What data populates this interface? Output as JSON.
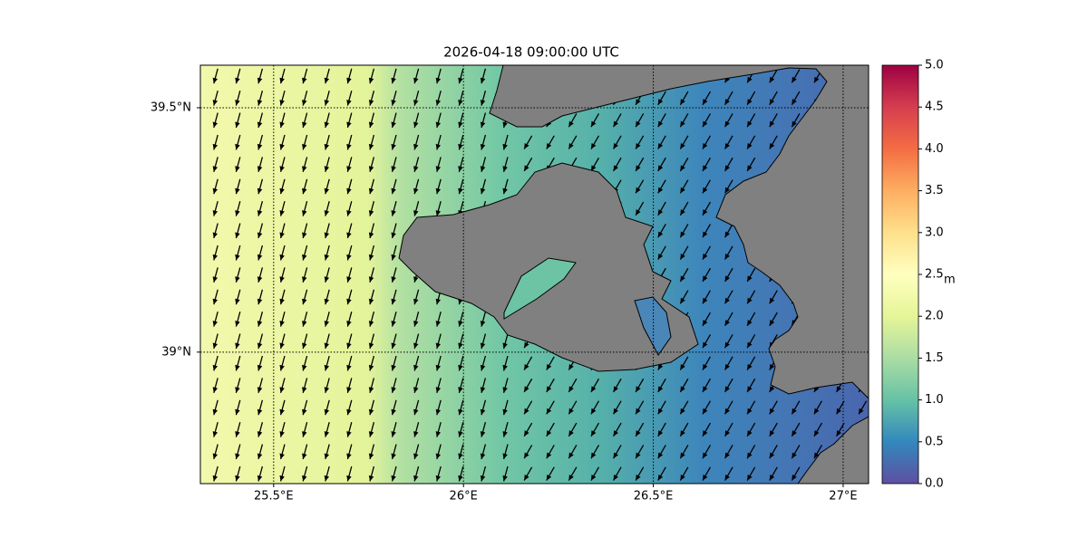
{
  "title": "2026-04-18 09:00:00 UTC",
  "map": {
    "xlim": [
      25.307,
      27.067
    ],
    "ylim": [
      38.731,
      39.587
    ],
    "xticks": [
      {
        "value": 25.5,
        "label": "25.5°E"
      },
      {
        "value": 26,
        "label": "26°E"
      },
      {
        "value": 26.5,
        "label": "26.5°E"
      },
      {
        "value": 27,
        "label": "27°E"
      }
    ],
    "yticks": [
      {
        "value": 39,
        "label": "39°N"
      },
      {
        "value": 39.5,
        "label": "39.5°N"
      }
    ]
  },
  "colorbar": {
    "label": "m",
    "lim": [
      0,
      5
    ],
    "ticks": [
      {
        "value": 0,
        "label": "0.0"
      },
      {
        "value": 0.5,
        "label": "0.5"
      },
      {
        "value": 1,
        "label": "1.0"
      },
      {
        "value": 1.5,
        "label": "1.5"
      },
      {
        "value": 2,
        "label": "2.0"
      },
      {
        "value": 2.5,
        "label": "2.5"
      },
      {
        "value": 3,
        "label": "3.0"
      },
      {
        "value": 3.5,
        "label": "3.5"
      },
      {
        "value": 4,
        "label": "4.0"
      },
      {
        "value": 4.5,
        "label": "4.5"
      },
      {
        "value": 5,
        "label": "5.0"
      }
    ]
  }
}
